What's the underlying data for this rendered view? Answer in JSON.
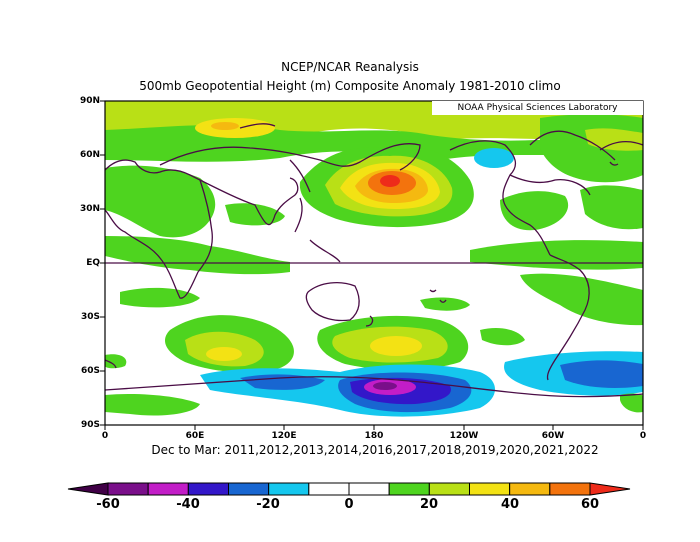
{
  "title_line1": "NCEP/NCAR Reanalysis",
  "title_line2": "500mb Geopotential Height (m) Composite Anomaly 1981-2010 climo",
  "credit": "NOAA Physical Sciences Laboratory",
  "subtitle": "Dec to Mar: 2011,2012,2013,2014,2016,2017,2018,2019,2020,2021,2022",
  "lat_labels": [
    "90N",
    "60N",
    "30N",
    "EQ",
    "30S",
    "60S",
    "90S"
  ],
  "lon_labels": [
    "0",
    "60E",
    "120E",
    "180",
    "120W",
    "60W",
    "0"
  ],
  "colorbar": {
    "labels": [
      "-60",
      "-40",
      "-20",
      "0",
      "20",
      "40",
      "60"
    ],
    "colors": [
      "#7a0f8a",
      "#c21dc7",
      "#3317c9",
      "#1866d1",
      "#15c7ee",
      "#ffffff",
      "#ffffff",
      "#4ed41f",
      "#b9e016",
      "#f3e214",
      "#f5b910",
      "#f3730d"
    ],
    "under": "#400046",
    "over": "#ee2b1a"
  },
  "map": {
    "projection": "equirectangular",
    "lon_range": [
      0,
      360
    ],
    "lat_range": [
      -90,
      90
    ],
    "units": "m"
  }
}
